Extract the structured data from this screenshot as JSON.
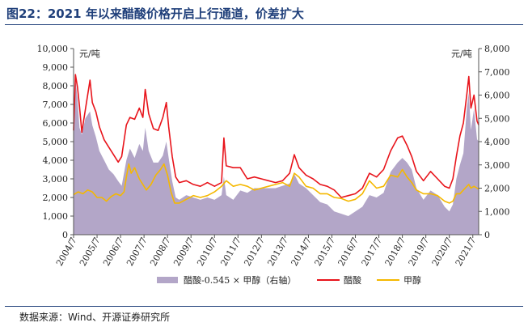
{
  "figure_title": "图22：2021 年以来醋酸价格开启上行通道，价差扩大",
  "source": "数据来源：Wind、开源证券研究所",
  "chart_data": {
    "type": "line",
    "title": "",
    "left_axis": {
      "unit": "元/吨",
      "ylim": [
        0,
        10000
      ],
      "ticks": [
        "0",
        "1,000",
        "2,000",
        "3,000",
        "4,000",
        "5,000",
        "6,000",
        "7,000",
        "8,000",
        "9,000",
        "10,000"
      ]
    },
    "right_axis": {
      "unit": "元/吨",
      "ylim": [
        0,
        8000
      ],
      "ticks": [
        "0",
        "1,000",
        "2,000",
        "3,000",
        "4,000",
        "5,000",
        "6,000",
        "7,000",
        "8,000"
      ]
    },
    "x_ticks": [
      "2004/7",
      "2005/7",
      "2006/7",
      "2007/7",
      "2008/7",
      "2009/7",
      "2010/7",
      "2011/7",
      "2012/7",
      "2013/7",
      "2014/7",
      "2015/7",
      "2016/7",
      "2017/7",
      "2018/7",
      "2019/7",
      "2020/7",
      "2021/7"
    ],
    "x_range": [
      2004.5,
      2021.75
    ],
    "grid": false,
    "legend_position": "bottom",
    "series": [
      {
        "name": "醋酸-0.545 × 甲醇（右轴）",
        "kind": "area",
        "axis": "right",
        "color": "#b3a6c8",
        "points": [
          [
            2004.5,
            4700
          ],
          [
            2004.58,
            6700
          ],
          [
            2004.67,
            5800
          ],
          [
            2004.75,
            4600
          ],
          [
            2004.85,
            4300
          ],
          [
            2005.0,
            5000
          ],
          [
            2005.2,
            5300
          ],
          [
            2005.3,
            4700
          ],
          [
            2005.45,
            4200
          ],
          [
            2005.6,
            3600
          ],
          [
            2005.8,
            3200
          ],
          [
            2006.0,
            2800
          ],
          [
            2006.2,
            2600
          ],
          [
            2006.4,
            2300
          ],
          [
            2006.55,
            2100
          ],
          [
            2006.75,
            3200
          ],
          [
            2006.9,
            3700
          ],
          [
            2007.1,
            3300
          ],
          [
            2007.3,
            3900
          ],
          [
            2007.45,
            3600
          ],
          [
            2007.55,
            4600
          ],
          [
            2007.7,
            3600
          ],
          [
            2007.9,
            3100
          ],
          [
            2008.1,
            3100
          ],
          [
            2008.3,
            3400
          ],
          [
            2008.45,
            4000
          ],
          [
            2008.55,
            3300
          ],
          [
            2008.7,
            2300
          ],
          [
            2008.85,
            1600
          ],
          [
            2009.0,
            1500
          ],
          [
            2009.3,
            1700
          ],
          [
            2009.6,
            1600
          ],
          [
            2009.9,
            1500
          ],
          [
            2010.2,
            1600
          ],
          [
            2010.5,
            1500
          ],
          [
            2010.8,
            1700
          ],
          [
            2010.9,
            2500
          ],
          [
            2011.0,
            1700
          ],
          [
            2011.3,
            1500
          ],
          [
            2011.6,
            1900
          ],
          [
            2011.9,
            1800
          ],
          [
            2012.2,
            2000
          ],
          [
            2012.5,
            2000
          ],
          [
            2012.8,
            2000
          ],
          [
            2013.1,
            2000
          ],
          [
            2013.4,
            2100
          ],
          [
            2013.7,
            2200
          ],
          [
            2013.9,
            2600
          ],
          [
            2014.1,
            2200
          ],
          [
            2014.4,
            2000
          ],
          [
            2014.7,
            1700
          ],
          [
            2015.0,
            1400
          ],
          [
            2015.3,
            1300
          ],
          [
            2015.6,
            1000
          ],
          [
            2015.9,
            900
          ],
          [
            2016.2,
            800
          ],
          [
            2016.5,
            1000
          ],
          [
            2016.8,
            1200
          ],
          [
            2017.1,
            1700
          ],
          [
            2017.4,
            1600
          ],
          [
            2017.7,
            1800
          ],
          [
            2018.0,
            2700
          ],
          [
            2018.3,
            3100
          ],
          [
            2018.5,
            3300
          ],
          [
            2018.7,
            3100
          ],
          [
            2018.9,
            2800
          ],
          [
            2019.1,
            2000
          ],
          [
            2019.4,
            1500
          ],
          [
            2019.7,
            1900
          ],
          [
            2020.0,
            1700
          ],
          [
            2020.3,
            1200
          ],
          [
            2020.5,
            1000
          ],
          [
            2020.65,
            1300
          ],
          [
            2020.8,
            2400
          ],
          [
            2020.95,
            3000
          ],
          [
            2021.1,
            3500
          ],
          [
            2021.25,
            5500
          ],
          [
            2021.33,
            6100
          ],
          [
            2021.42,
            4500
          ],
          [
            2021.55,
            5400
          ],
          [
            2021.68,
            4100
          ],
          [
            2021.75,
            4000
          ]
        ]
      },
      {
        "name": "醋酸",
        "kind": "line",
        "axis": "left",
        "color": "#e8141b",
        "points": [
          [
            2004.5,
            5600
          ],
          [
            2004.58,
            8600
          ],
          [
            2004.67,
            7900
          ],
          [
            2004.75,
            6900
          ],
          [
            2004.85,
            5500
          ],
          [
            2005.0,
            6700
          ],
          [
            2005.2,
            8300
          ],
          [
            2005.3,
            7100
          ],
          [
            2005.45,
            6600
          ],
          [
            2005.6,
            5800
          ],
          [
            2005.8,
            5100
          ],
          [
            2006.0,
            4700
          ],
          [
            2006.2,
            4300
          ],
          [
            2006.4,
            3900
          ],
          [
            2006.55,
            4200
          ],
          [
            2006.75,
            5900
          ],
          [
            2006.9,
            6300
          ],
          [
            2007.1,
            6200
          ],
          [
            2007.3,
            6800
          ],
          [
            2007.45,
            6300
          ],
          [
            2007.55,
            7800
          ],
          [
            2007.7,
            6500
          ],
          [
            2007.9,
            5700
          ],
          [
            2008.1,
            5600
          ],
          [
            2008.3,
            6300
          ],
          [
            2008.45,
            7100
          ],
          [
            2008.55,
            5800
          ],
          [
            2008.7,
            4200
          ],
          [
            2008.85,
            3100
          ],
          [
            2009.0,
            2800
          ],
          [
            2009.3,
            2900
          ],
          [
            2009.6,
            2700
          ],
          [
            2009.9,
            2600
          ],
          [
            2010.2,
            2800
          ],
          [
            2010.5,
            2600
          ],
          [
            2010.8,
            2800
          ],
          [
            2010.9,
            5200
          ],
          [
            2011.0,
            3700
          ],
          [
            2011.3,
            3600
          ],
          [
            2011.6,
            3600
          ],
          [
            2011.9,
            3000
          ],
          [
            2012.2,
            3100
          ],
          [
            2012.5,
            3000
          ],
          [
            2012.8,
            2900
          ],
          [
            2013.1,
            2800
          ],
          [
            2013.4,
            2900
          ],
          [
            2013.7,
            3300
          ],
          [
            2013.9,
            4300
          ],
          [
            2014.1,
            3600
          ],
          [
            2014.4,
            3200
          ],
          [
            2014.7,
            3000
          ],
          [
            2015.0,
            2700
          ],
          [
            2015.3,
            2600
          ],
          [
            2015.6,
            2400
          ],
          [
            2015.9,
            2000
          ],
          [
            2016.2,
            2100
          ],
          [
            2016.5,
            2200
          ],
          [
            2016.8,
            2500
          ],
          [
            2017.1,
            3300
          ],
          [
            2017.4,
            3100
          ],
          [
            2017.7,
            3500
          ],
          [
            2018.0,
            4500
          ],
          [
            2018.3,
            5200
          ],
          [
            2018.5,
            5300
          ],
          [
            2018.7,
            4800
          ],
          [
            2018.9,
            4200
          ],
          [
            2019.1,
            3400
          ],
          [
            2019.4,
            2900
          ],
          [
            2019.7,
            3400
          ],
          [
            2020.0,
            3000
          ],
          [
            2020.3,
            2600
          ],
          [
            2020.5,
            2500
          ],
          [
            2020.65,
            3000
          ],
          [
            2020.8,
            4200
          ],
          [
            2020.95,
            5300
          ],
          [
            2021.1,
            6000
          ],
          [
            2021.25,
            7600
          ],
          [
            2021.33,
            8500
          ],
          [
            2021.42,
            6800
          ],
          [
            2021.55,
            7500
          ],
          [
            2021.68,
            6100
          ],
          [
            2021.75,
            5900
          ]
        ]
      },
      {
        "name": "甲醇",
        "kind": "line",
        "axis": "left",
        "color": "#f5b800",
        "points": [
          [
            2004.5,
            2150
          ],
          [
            2004.7,
            2300
          ],
          [
            2004.9,
            2200
          ],
          [
            2005.1,
            2400
          ],
          [
            2005.3,
            2300
          ],
          [
            2005.5,
            2000
          ],
          [
            2005.7,
            2000
          ],
          [
            2005.9,
            1800
          ],
          [
            2006.1,
            2050
          ],
          [
            2006.3,
            2200
          ],
          [
            2006.5,
            2100
          ],
          [
            2006.65,
            2300
          ],
          [
            2006.75,
            3100
          ],
          [
            2006.85,
            3800
          ],
          [
            2006.95,
            3300
          ],
          [
            2007.1,
            3600
          ],
          [
            2007.3,
            3000
          ],
          [
            2007.45,
            2700
          ],
          [
            2007.6,
            2400
          ],
          [
            2007.8,
            2700
          ],
          [
            2008.0,
            3200
          ],
          [
            2008.2,
            3500
          ],
          [
            2008.35,
            3800
          ],
          [
            2008.5,
            3200
          ],
          [
            2008.65,
            2300
          ],
          [
            2008.8,
            1700
          ],
          [
            2009.0,
            1700
          ],
          [
            2009.3,
            1900
          ],
          [
            2009.6,
            2100
          ],
          [
            2009.9,
            2000
          ],
          [
            2010.2,
            2100
          ],
          [
            2010.5,
            2300
          ],
          [
            2010.8,
            2600
          ],
          [
            2011.0,
            2900
          ],
          [
            2011.3,
            2600
          ],
          [
            2011.6,
            2700
          ],
          [
            2011.9,
            2600
          ],
          [
            2012.2,
            2400
          ],
          [
            2012.5,
            2500
          ],
          [
            2012.8,
            2600
          ],
          [
            2013.1,
            2700
          ],
          [
            2013.4,
            2800
          ],
          [
            2013.7,
            2600
          ],
          [
            2013.9,
            3300
          ],
          [
            2014.1,
            3100
          ],
          [
            2014.4,
            2600
          ],
          [
            2014.7,
            2500
          ],
          [
            2015.0,
            2200
          ],
          [
            2015.3,
            2200
          ],
          [
            2015.6,
            2000
          ],
          [
            2015.9,
            1950
          ],
          [
            2016.2,
            1800
          ],
          [
            2016.5,
            1900
          ],
          [
            2016.8,
            2200
          ],
          [
            2017.1,
            2900
          ],
          [
            2017.4,
            2500
          ],
          [
            2017.7,
            2600
          ],
          [
            2018.0,
            3200
          ],
          [
            2018.3,
            3100
          ],
          [
            2018.5,
            3500
          ],
          [
            2018.7,
            3100
          ],
          [
            2018.9,
            2800
          ],
          [
            2019.1,
            2400
          ],
          [
            2019.4,
            2200
          ],
          [
            2019.7,
            2200
          ],
          [
            2020.0,
            2100
          ],
          [
            2020.3,
            1800
          ],
          [
            2020.5,
            1700
          ],
          [
            2020.65,
            1800
          ],
          [
            2020.8,
            2200
          ],
          [
            2020.95,
            2200
          ],
          [
            2021.1,
            2400
          ],
          [
            2021.25,
            2600
          ],
          [
            2021.33,
            2700
          ],
          [
            2021.42,
            2500
          ],
          [
            2021.55,
            2600
          ],
          [
            2021.68,
            2500
          ],
          [
            2021.75,
            2450
          ]
        ]
      }
    ]
  }
}
